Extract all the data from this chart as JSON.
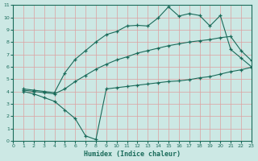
{
  "xlabel": "Humidex (Indice chaleur)",
  "xlim": [
    0,
    23
  ],
  "ylim": [
    0,
    11
  ],
  "xticks": [
    0,
    1,
    2,
    3,
    4,
    5,
    6,
    7,
    8,
    9,
    10,
    11,
    12,
    13,
    14,
    15,
    16,
    17,
    18,
    19,
    20,
    21,
    22,
    23
  ],
  "yticks": [
    0,
    1,
    2,
    3,
    4,
    5,
    6,
    7,
    8,
    9,
    10,
    11
  ],
  "bg_color": "#cce8e4",
  "line_color": "#1a6b5a",
  "grid_color": "#dda0a0",
  "curve1_x": [
    1,
    2,
    3,
    4,
    5,
    6,
    7,
    8,
    9,
    10,
    11,
    12,
    13,
    14,
    15,
    16,
    17,
    18,
    19,
    20,
    21,
    22,
    23
  ],
  "curve1_y": [
    4.0,
    3.8,
    3.5,
    3.2,
    2.5,
    1.8,
    0.4,
    0.1,
    4.2,
    4.3,
    4.4,
    4.5,
    4.6,
    4.7,
    4.8,
    4.85,
    4.95,
    5.1,
    5.2,
    5.4,
    5.6,
    5.75,
    5.95
  ],
  "curve2_x": [
    1,
    2,
    3,
    4,
    5,
    6,
    7,
    8,
    9,
    10,
    11,
    12,
    13,
    14,
    15,
    16,
    17,
    18,
    19,
    20,
    21,
    22,
    23
  ],
  "curve2_y": [
    4.1,
    4.0,
    3.9,
    3.8,
    4.2,
    4.8,
    5.3,
    5.8,
    6.2,
    6.55,
    6.8,
    7.1,
    7.3,
    7.5,
    7.7,
    7.85,
    8.0,
    8.1,
    8.2,
    8.35,
    8.45,
    7.3,
    6.5
  ],
  "curve3_x": [
    1,
    2,
    3,
    4,
    5,
    6,
    7,
    8,
    9,
    10,
    11,
    12,
    13,
    14,
    15,
    16,
    17,
    18,
    19,
    20,
    21,
    22,
    23
  ],
  "curve3_y": [
    4.2,
    4.1,
    4.0,
    3.9,
    5.5,
    6.6,
    7.3,
    8.0,
    8.6,
    8.85,
    9.3,
    9.35,
    9.3,
    9.95,
    10.85,
    10.1,
    10.3,
    10.15,
    9.3,
    10.15,
    7.4,
    6.7,
    6.0
  ]
}
